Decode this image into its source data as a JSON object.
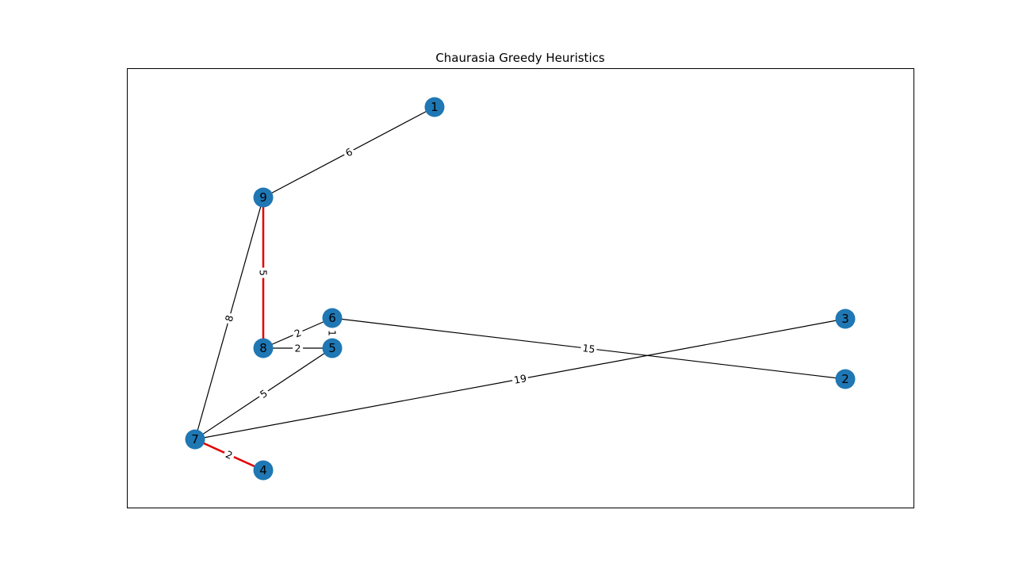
{
  "figure": {
    "title": "Chaurasia Greedy Heuristics",
    "node_color": "#1f77b4",
    "edge_color": "#000000",
    "highlight_color": "#e00000"
  },
  "nodes": [
    {
      "id": "1",
      "label": "1"
    },
    {
      "id": "2",
      "label": "2"
    },
    {
      "id": "3",
      "label": "3"
    },
    {
      "id": "4",
      "label": "4"
    },
    {
      "id": "5",
      "label": "5"
    },
    {
      "id": "6",
      "label": "6"
    },
    {
      "id": "7",
      "label": "7"
    },
    {
      "id": "8",
      "label": "8"
    },
    {
      "id": "9",
      "label": "9"
    }
  ],
  "edges": [
    {
      "source": "9",
      "target": "1",
      "weight": "6",
      "highlighted": false
    },
    {
      "source": "9",
      "target": "8",
      "weight": "5",
      "highlighted": true
    },
    {
      "source": "9",
      "target": "7",
      "weight": "8",
      "highlighted": false
    },
    {
      "source": "8",
      "target": "6",
      "weight": "2",
      "highlighted": false
    },
    {
      "source": "8",
      "target": "5",
      "weight": "2",
      "highlighted": false
    },
    {
      "source": "6",
      "target": "5",
      "weight": "1",
      "highlighted": false
    },
    {
      "source": "6",
      "target": "2",
      "weight": "15",
      "highlighted": false
    },
    {
      "source": "7",
      "target": "5",
      "weight": "5",
      "highlighted": false
    },
    {
      "source": "7",
      "target": "3",
      "weight": "19",
      "highlighted": false
    },
    {
      "source": "7",
      "target": "4",
      "weight": "2",
      "highlighted": true
    }
  ]
}
